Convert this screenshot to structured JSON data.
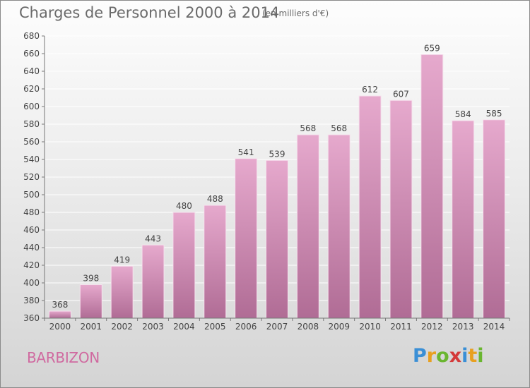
{
  "header": {
    "title": "Charges de Personnel 2000 à 2014",
    "subtitle": "(en milliers d'€)"
  },
  "footer": {
    "commune": "BARBIZON",
    "logo_text": "Proxiti"
  },
  "colors": {
    "bar_top": "#e6a9cd",
    "bar_bottom": "#b06c95",
    "title": "#6a6a6a",
    "commune": "#d06aa0",
    "gridline": "#ffffff"
  },
  "chart_data": {
    "type": "bar",
    "title": "Charges de Personnel 2000 à 2014",
    "subtitle": "(en milliers d'€)",
    "categories": [
      "2000",
      "2001",
      "2002",
      "2003",
      "2004",
      "2005",
      "2006",
      "2007",
      "2008",
      "2009",
      "2010",
      "2011",
      "2012",
      "2013",
      "2014"
    ],
    "values": [
      368,
      398,
      419,
      443,
      480,
      488,
      541,
      539,
      568,
      568,
      612,
      607,
      659,
      584,
      585
    ],
    "ylim": [
      360,
      680
    ],
    "yticks": [
      360,
      380,
      400,
      420,
      440,
      460,
      480,
      500,
      520,
      540,
      560,
      580,
      600,
      620,
      640,
      660,
      680
    ],
    "grid": true,
    "data_labels": true
  }
}
